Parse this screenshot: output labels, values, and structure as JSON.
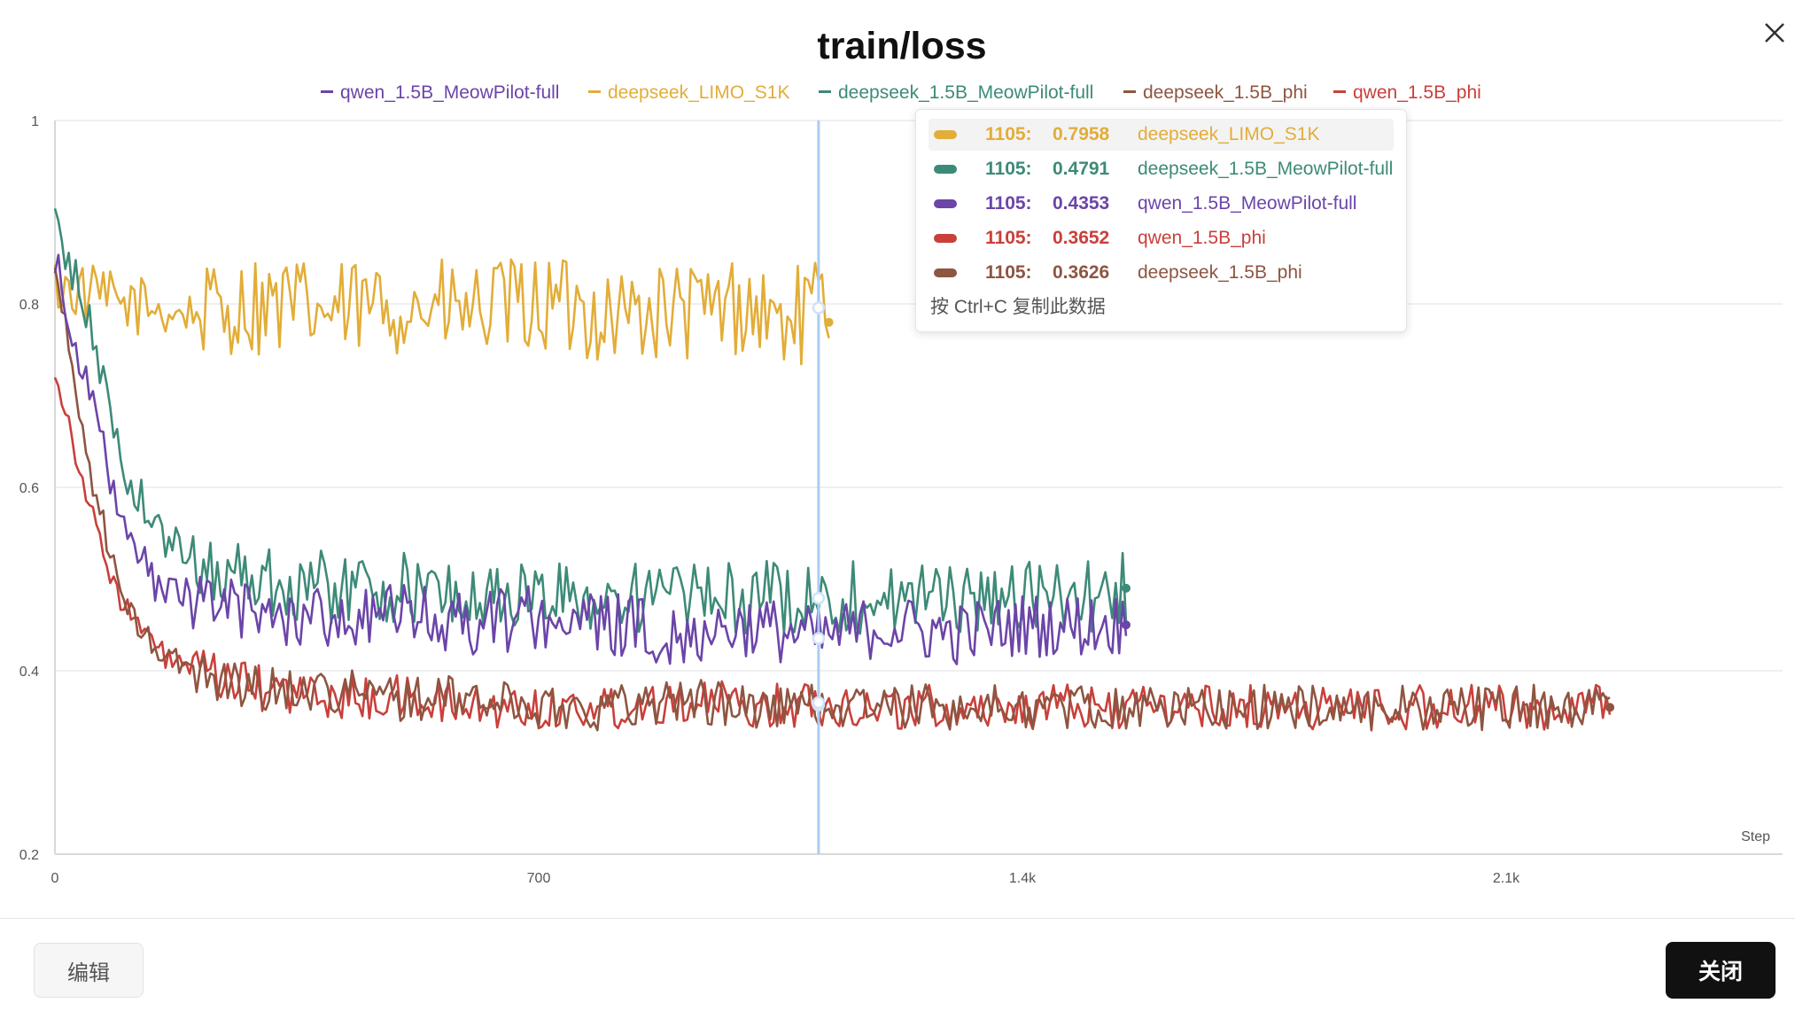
{
  "dialog": {
    "edit_label": "编辑",
    "close_label": "关闭"
  },
  "colors": {
    "qwen_1.5B_MeowPilot-full": "#6b45a8",
    "deepseek_LIMO_S1K": "#e2ad38",
    "deepseek_1.5B_MeowPilot-full": "#3d8a78",
    "deepseek_1.5B_phi": "#8e5541",
    "qwen_1.5B_phi": "#c9403b"
  },
  "tooltip": {
    "rows": [
      {
        "step": "1105:",
        "value": "0.7958",
        "name": "deepseek_LIMO_S1K",
        "color": "#e2ad38"
      },
      {
        "step": "1105:",
        "value": "0.4791",
        "name": "deepseek_1.5B_MeowPilot-full",
        "color": "#3d8a78"
      },
      {
        "step": "1105:",
        "value": "0.4353",
        "name": "qwen_1.5B_MeowPilot-full",
        "color": "#6b45a8"
      },
      {
        "step": "1105:",
        "value": "0.3652",
        "name": "qwen_1.5B_phi",
        "color": "#c9403b"
      },
      {
        "step": "1105:",
        "value": "0.3626",
        "name": "deepseek_1.5B_phi",
        "color": "#8e5541"
      }
    ],
    "hint": "按 Ctrl+C 复制此数据"
  },
  "chart_data": {
    "type": "line",
    "title": "train/loss",
    "xlabel": "Step",
    "ylabel": "",
    "xlim": [
      0,
      2500
    ],
    "ylim": [
      0.2,
      1.0
    ],
    "x_ticks": [
      0,
      700,
      1400,
      2100
    ],
    "x_tick_labels": [
      "0",
      "700",
      "1.4k",
      "2.1k"
    ],
    "y_ticks": [
      0.2,
      0.4,
      0.6,
      0.8,
      1.0
    ],
    "y_tick_labels": [
      "0.2",
      "0.4",
      "0.6",
      "0.8",
      "1"
    ],
    "grid": true,
    "legend_position": "top",
    "hover_step": 1105,
    "series": [
      {
        "name": "qwen_1.5B_MeowPilot-full",
        "color": "#6b45a8",
        "x": [
          0,
          50,
          100,
          150,
          200,
          300,
          400,
          500,
          600,
          700,
          800,
          900,
          1000,
          1105,
          1200,
          1300,
          1400,
          1500,
          1550
        ],
        "y": [
          0.85,
          0.7,
          0.55,
          0.49,
          0.48,
          0.46,
          0.46,
          0.46,
          0.45,
          0.46,
          0.45,
          0.44,
          0.45,
          0.4353,
          0.45,
          0.44,
          0.45,
          0.45,
          0.45
        ]
      },
      {
        "name": "deepseek_LIMO_S1K",
        "color": "#e2ad38",
        "x": [
          0,
          50,
          100,
          200,
          300,
          400,
          500,
          600,
          700,
          800,
          900,
          1000,
          1050,
          1105,
          1120
        ],
        "y": [
          0.82,
          0.81,
          0.8,
          0.79,
          0.8,
          0.79,
          0.8,
          0.79,
          0.8,
          0.79,
          0.79,
          0.8,
          0.78,
          0.7958,
          0.78
        ]
      },
      {
        "name": "deepseek_1.5B_MeowPilot-full",
        "color": "#3d8a78",
        "x": [
          0,
          50,
          100,
          150,
          200,
          300,
          400,
          500,
          600,
          700,
          800,
          900,
          1000,
          1105,
          1200,
          1300,
          1400,
          1500,
          1550
        ],
        "y": [
          0.89,
          0.78,
          0.62,
          0.55,
          0.52,
          0.5,
          0.49,
          0.49,
          0.48,
          0.48,
          0.48,
          0.48,
          0.48,
          0.4791,
          0.48,
          0.48,
          0.48,
          0.48,
          0.49
        ]
      },
      {
        "name": "deepseek_1.5B_phi",
        "color": "#8e5541",
        "x": [
          0,
          50,
          100,
          150,
          200,
          300,
          400,
          500,
          600,
          700,
          800,
          900,
          1000,
          1105,
          1200,
          1400,
          1600,
          1800,
          2000,
          2100,
          2200,
          2250
        ],
        "y": [
          0.84,
          0.62,
          0.47,
          0.42,
          0.4,
          0.38,
          0.38,
          0.37,
          0.37,
          0.36,
          0.36,
          0.37,
          0.36,
          0.3626,
          0.36,
          0.36,
          0.36,
          0.36,
          0.36,
          0.36,
          0.36,
          0.36
        ]
      },
      {
        "name": "qwen_1.5B_phi",
        "color": "#c9403b",
        "x": [
          0,
          30,
          60,
          100,
          150,
          200,
          300,
          400,
          500,
          600,
          700,
          800,
          900,
          1000,
          1105,
          1200,
          1400,
          1600,
          1800,
          2000,
          2200,
          2250
        ],
        "y": [
          0.73,
          0.64,
          0.55,
          0.47,
          0.42,
          0.4,
          0.38,
          0.37,
          0.37,
          0.36,
          0.36,
          0.36,
          0.37,
          0.36,
          0.3652,
          0.36,
          0.36,
          0.36,
          0.36,
          0.36,
          0.36,
          0.36
        ]
      }
    ]
  }
}
